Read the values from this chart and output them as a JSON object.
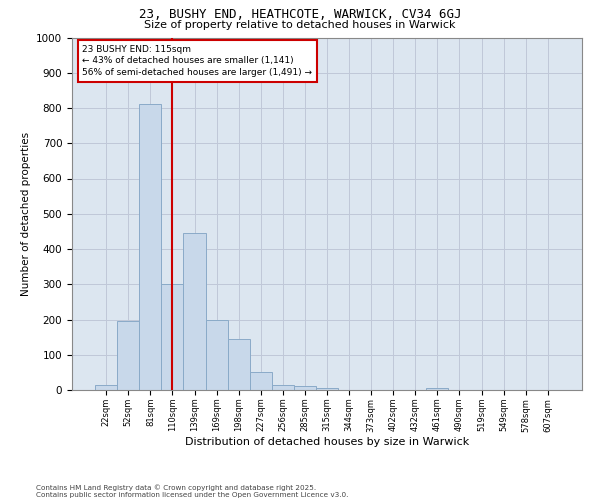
{
  "title1": "23, BUSHY END, HEATHCOTE, WARWICK, CV34 6GJ",
  "title2": "Size of property relative to detached houses in Warwick",
  "xlabel": "Distribution of detached houses by size in Warwick",
  "ylabel": "Number of detached properties",
  "bar_color": "#c8d8ea",
  "bar_edge_color": "#8aaac8",
  "grid_color": "#c0c8d8",
  "bg_color": "#dce6f0",
  "categories": [
    "22sqm",
    "52sqm",
    "81sqm",
    "110sqm",
    "139sqm",
    "169sqm",
    "198sqm",
    "227sqm",
    "256sqm",
    "285sqm",
    "315sqm",
    "344sqm",
    "373sqm",
    "402sqm",
    "432sqm",
    "461sqm",
    "490sqm",
    "519sqm",
    "549sqm",
    "578sqm",
    "607sqm"
  ],
  "values": [
    15,
    195,
    810,
    300,
    445,
    200,
    145,
    50,
    15,
    10,
    5,
    0,
    0,
    0,
    0,
    5,
    0,
    0,
    0,
    0,
    0
  ],
  "vline_x": 3,
  "vline_color": "#cc0000",
  "annotation_text": "23 BUSHY END: 115sqm\n← 43% of detached houses are smaller (1,141)\n56% of semi-detached houses are larger (1,491) →",
  "footer1": "Contains HM Land Registry data © Crown copyright and database right 2025.",
  "footer2": "Contains public sector information licensed under the Open Government Licence v3.0.",
  "ylim": [
    0,
    1000
  ],
  "yticks": [
    0,
    100,
    200,
    300,
    400,
    500,
    600,
    700,
    800,
    900,
    1000
  ]
}
